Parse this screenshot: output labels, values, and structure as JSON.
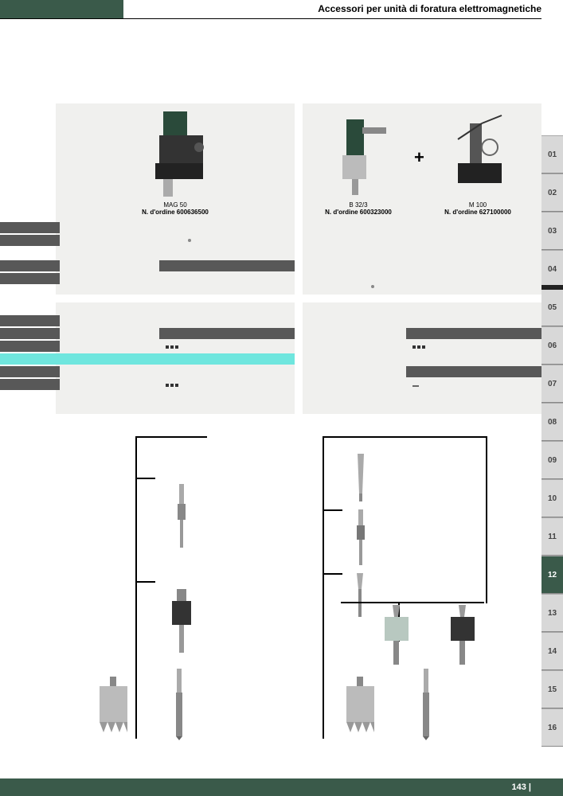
{
  "header": {
    "title": "Accessori per unità di foratura elettromagnetiche"
  },
  "products": {
    "left": {
      "name": "MAG 50",
      "order": "N. d'ordine 600636500"
    },
    "mid": {
      "name": "B 32/3",
      "order": "N. d'ordine 600323000"
    },
    "right": {
      "name": "M 100",
      "order": "N. d'ordine 627100000"
    }
  },
  "side_tabs": [
    "01",
    "02",
    "03",
    "04",
    "05",
    "06",
    "07",
    "08",
    "09",
    "10",
    "11",
    "12",
    "13",
    "14",
    "15",
    "16"
  ],
  "active_tab": "12",
  "footer": {
    "page": "143 |"
  },
  "colors": {
    "brand": "#3a5a4a",
    "panel": "#f0f0ee",
    "band": "#585858",
    "cyan": "#6fe6de",
    "tab": "#d8d8d8"
  }
}
